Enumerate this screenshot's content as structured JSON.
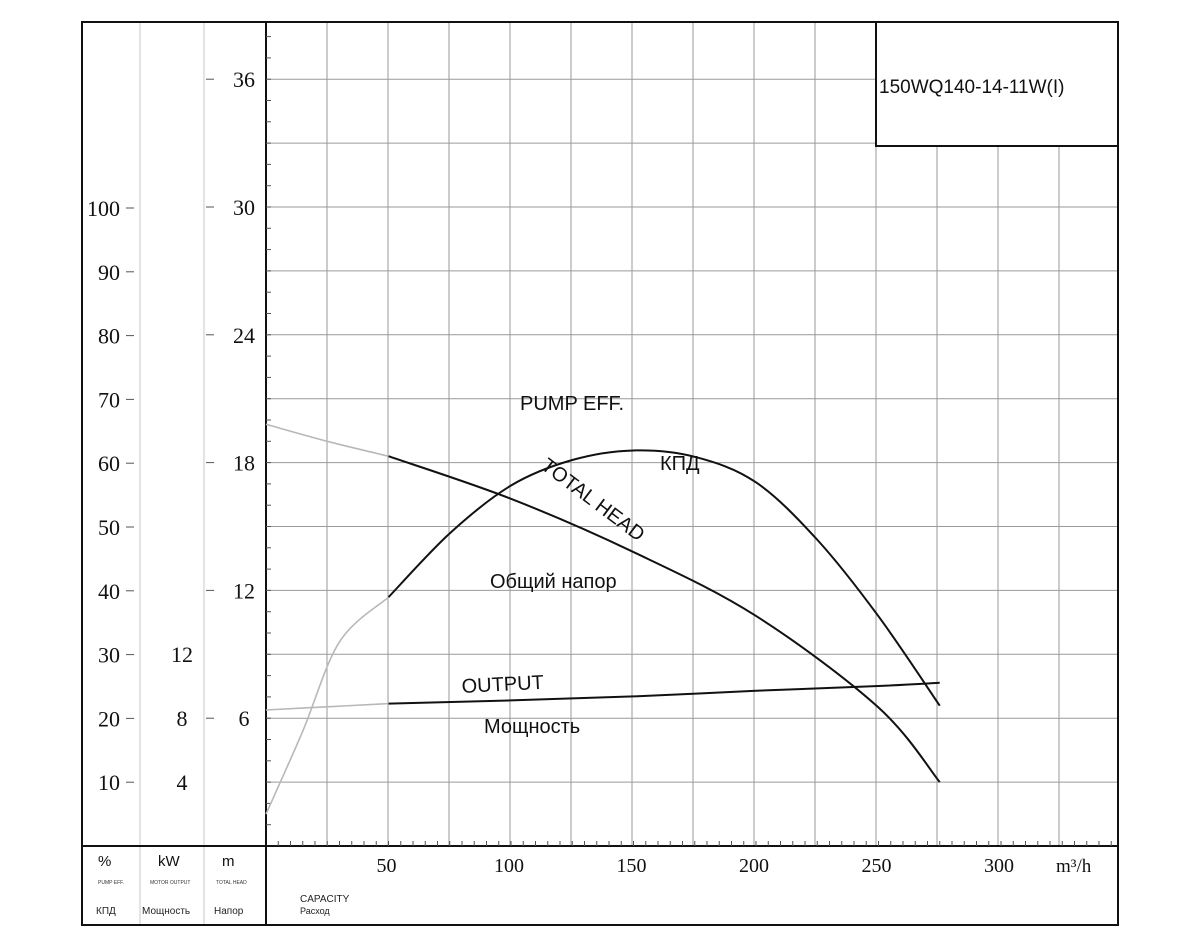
{
  "chart_data": {
    "type": "line",
    "model_box": "150WQ140-14-11W(I)",
    "x": {
      "tick_labels": [
        "50",
        "100",
        "150",
        "200",
        "250",
        "300"
      ],
      "unit_label": "m³/h",
      "range": [
        0,
        330
      ]
    },
    "axes_units": {
      "eff": {
        "unit": "%",
        "tiny_en": "PUMP EFF.",
        "ru": "КПД"
      },
      "power": {
        "unit": "kW",
        "tiny_en": "MOTOR OUTPUT",
        "ru": "Мощность"
      },
      "head": {
        "unit": "m",
        "tiny_en": "TOTAL HEAD",
        "ru": "Напор"
      }
    },
    "capacity_label": {
      "en": "CAPACITY",
      "ru": "Расход"
    },
    "eff_axis": {
      "tick_labels": [
        "10",
        "20",
        "30",
        "40",
        "50",
        "60",
        "70",
        "80",
        "90",
        "100"
      ],
      "range": [
        0,
        100
      ]
    },
    "power_axis": {
      "tick_labels": [
        "4",
        "8",
        "12"
      ],
      "range": [
        0,
        16
      ]
    },
    "head_axis": {
      "tick_labels": [
        "6",
        "12",
        "18",
        "24",
        "30",
        "36"
      ],
      "range": [
        0,
        36
      ]
    },
    "curve_labels": {
      "eff_en": "PUMP EFF.",
      "eff_ru": "КПД",
      "head_en": "TOTAL HEAD",
      "head_ru": "Общий напор",
      "power_en": "OUTPUT",
      "power_ru": "Мощность"
    },
    "series": [
      {
        "id": "head",
        "axis": "head",
        "extrapolated": [
          [
            0,
            19.8
          ],
          [
            25,
            19
          ],
          [
            50,
            18.3
          ]
        ],
        "solid": [
          [
            50,
            18.3
          ],
          [
            100,
            16.3
          ],
          [
            150,
            13.8
          ],
          [
            200,
            10.8
          ],
          [
            250,
            6.5
          ],
          [
            275,
            3
          ]
        ]
      },
      {
        "id": "eff",
        "axis": "eff",
        "extrapolated": [
          [
            0,
            5
          ],
          [
            15,
            18
          ],
          [
            30,
            32
          ],
          [
            50,
            39
          ]
        ],
        "solid": [
          [
            50,
            39
          ],
          [
            75,
            49
          ],
          [
            100,
            56.5
          ],
          [
            125,
            60.5
          ],
          [
            150,
            62
          ],
          [
            175,
            61
          ],
          [
            200,
            57
          ],
          [
            225,
            48
          ],
          [
            250,
            36
          ],
          [
            275,
            22
          ]
        ]
      },
      {
        "id": "power",
        "axis": "power",
        "extrapolated": [
          [
            0,
            8.5
          ],
          [
            25,
            8.7
          ],
          [
            50,
            8.9
          ]
        ],
        "solid": [
          [
            50,
            8.9
          ],
          [
            100,
            9.1
          ],
          [
            150,
            9.35
          ],
          [
            200,
            9.7
          ],
          [
            250,
            10
          ],
          [
            275,
            10.2
          ]
        ]
      }
    ],
    "grid": true
  }
}
